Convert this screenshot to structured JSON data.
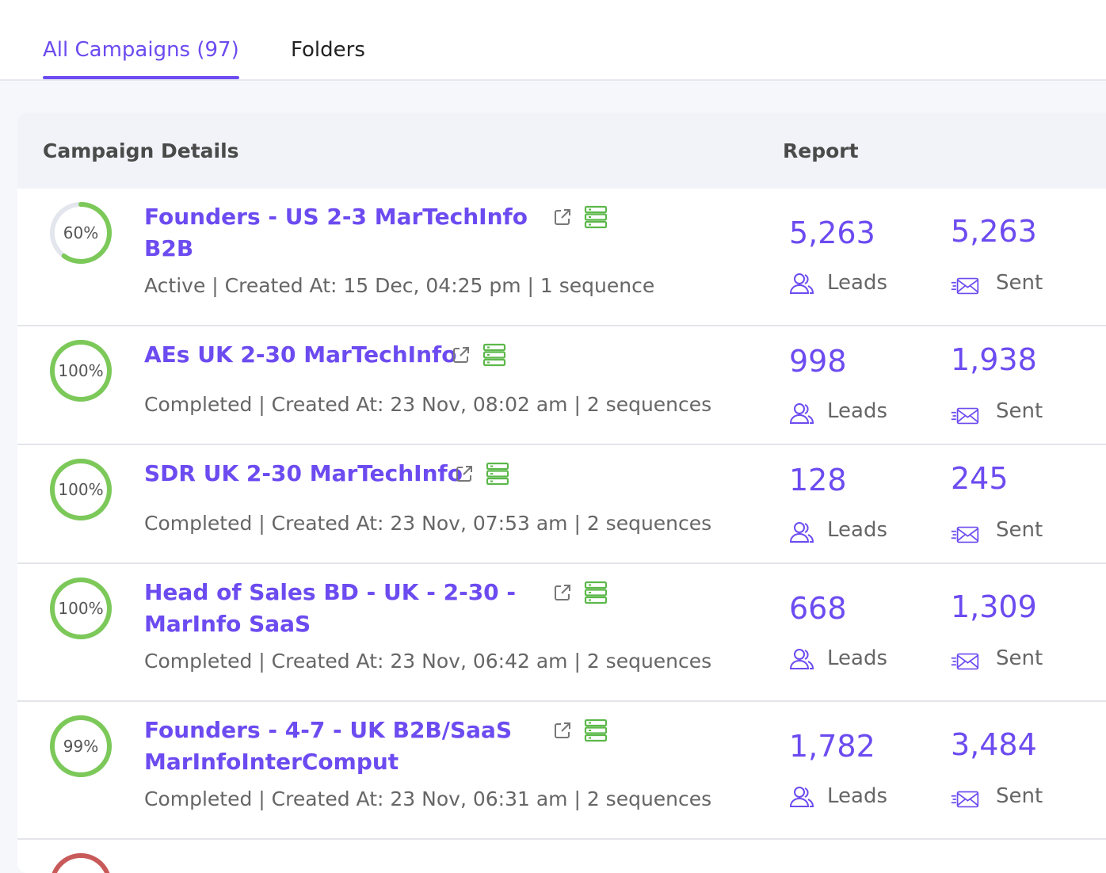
{
  "tabs": [
    {
      "label": "All Campaigns (97)",
      "active": true
    },
    {
      "label": "Folders",
      "active": false
    }
  ],
  "table": {
    "headers": {
      "details": "Campaign Details",
      "report": "Report"
    },
    "rows": [
      {
        "progress": "60%",
        "progress_value": 60,
        "ring_color": "#7cc95a",
        "title_line1": "Founders - US 2-3 MarTechInfo",
        "title_line2": "B2B",
        "meta": "Active | Created At: 15 Dec, 04:25 pm | 1 sequence",
        "leads": "5,263",
        "sent": "5,263"
      },
      {
        "progress": "100%",
        "progress_value": 100,
        "ring_color": "#7cc95a",
        "title_line1": "AEs UK 2-30 MarTechInfo",
        "title_line2": "",
        "meta": "Completed | Created At: 23 Nov, 08:02 am | 2 sequences",
        "leads": "998",
        "sent": "1,938"
      },
      {
        "progress": "100%",
        "progress_value": 100,
        "ring_color": "#7cc95a",
        "title_line1": "SDR UK 2-30 MarTechInfo",
        "title_line2": "",
        "meta": "Completed | Created At: 23 Nov, 07:53 am | 2 sequences",
        "leads": "128",
        "sent": "245"
      },
      {
        "progress": "100%",
        "progress_value": 100,
        "ring_color": "#7cc95a",
        "title_line1": "Head of Sales BD - UK - 2-30 -",
        "title_line2": "MarInfo SaaS",
        "meta": "Completed | Created At: 23 Nov, 06:42 am | 2 sequences",
        "leads": "668",
        "sent": "1,309"
      },
      {
        "progress": "99%",
        "progress_value": 99,
        "ring_color": "#7cc95a",
        "title_line1": "Founders - 4-7 - UK B2B/SaaS",
        "title_line2": "MarInfoInterComput",
        "meta": "Completed | Created At: 23 Nov, 06:31 am | 2 sequences",
        "leads": "1,782",
        "sent": "3,484"
      }
    ],
    "leads_label": "Leads",
    "sent_label": "Sent"
  },
  "colors": {
    "accent": "#6c4bf0",
    "success": "#7cc95a",
    "partial_row_ring": "#c95a5a"
  }
}
